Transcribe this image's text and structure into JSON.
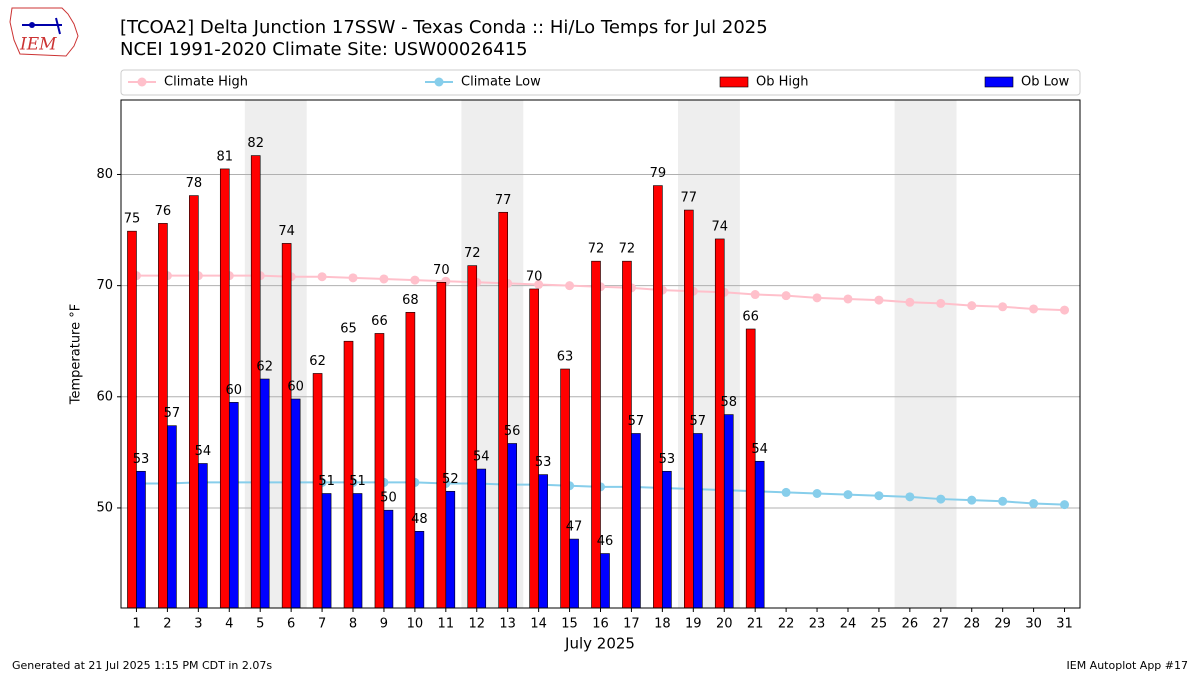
{
  "chart_data": {
    "type": "bar",
    "title": "[TCOA2] Delta Junction 17SSW - Texas Conda :: Hi/Lo Temps for Jul 2025",
    "subtitle": "NCEI 1991-2020 Climate Site: USW00026415",
    "logo_text": "IEM",
    "x_label": "July 2025",
    "y_label": "Temperature °F",
    "footer_left": "Generated at 21 Jul 2025 1:15 PM CDT in 2.07s",
    "footer_right": "IEM Autoplot App #17",
    "categories": [
      "1",
      "2",
      "3",
      "4",
      "5",
      "6",
      "7",
      "8",
      "9",
      "10",
      "11",
      "12",
      "13",
      "14",
      "15",
      "16",
      "17",
      "18",
      "19",
      "20",
      "21",
      "22",
      "23",
      "24",
      "25",
      "26",
      "27",
      "28",
      "29",
      "30",
      "31"
    ],
    "ylim": [
      41,
      86.7
    ],
    "yticks": [
      50,
      60,
      70,
      80
    ],
    "grid": true,
    "series": [
      {
        "name": "Climate High",
        "type": "line",
        "color": "#ffc0cb",
        "values": [
          70.9,
          70.9,
          70.9,
          70.9,
          70.9,
          70.8,
          70.8,
          70.7,
          70.6,
          70.5,
          70.4,
          70.3,
          70.2,
          70.1,
          70.0,
          69.9,
          69.8,
          69.6,
          69.5,
          69.4,
          69.2,
          69.1,
          68.9,
          68.8,
          68.7,
          68.5,
          68.4,
          68.2,
          68.1,
          67.9,
          67.8
        ]
      },
      {
        "name": "Climate Low",
        "type": "line",
        "color": "#87ceeb",
        "values": [
          52.2,
          52.2,
          52.3,
          52.3,
          52.3,
          52.3,
          52.3,
          52.3,
          52.3,
          52.3,
          52.2,
          52.2,
          52.1,
          52.1,
          52.0,
          51.9,
          51.9,
          51.8,
          51.7,
          51.6,
          51.5,
          51.4,
          51.3,
          51.2,
          51.1,
          51.0,
          50.8,
          50.7,
          50.6,
          50.4,
          50.3
        ]
      },
      {
        "name": "Ob High",
        "type": "bar",
        "color": "#ff0000",
        "values": [
          74.9,
          75.6,
          78.1,
          80.5,
          81.7,
          73.8,
          62.1,
          65.0,
          65.7,
          67.6,
          70.3,
          71.8,
          76.6,
          69.7,
          62.5,
          72.2,
          72.2,
          79.0,
          76.8,
          74.2,
          66.1,
          null,
          null,
          null,
          null,
          null,
          null,
          null,
          null,
          null,
          null
        ],
        "value_labels": [
          "75",
          "76",
          "78",
          "81",
          "82",
          "74",
          "62",
          "65",
          "66",
          "68",
          "70",
          "72",
          "77",
          "70",
          "63",
          "72",
          "72",
          "79",
          "77",
          "74",
          "66",
          null,
          null,
          null,
          null,
          null,
          null,
          null,
          null,
          null,
          null
        ]
      },
      {
        "name": "Ob Low",
        "type": "bar",
        "color": "#0000ff",
        "values": [
          53.3,
          57.4,
          54.0,
          59.5,
          61.6,
          59.8,
          51.3,
          51.3,
          49.8,
          47.9,
          51.5,
          53.5,
          55.8,
          53.0,
          47.2,
          45.9,
          56.7,
          53.3,
          56.7,
          58.4,
          54.2,
          null,
          null,
          null,
          null,
          null,
          null,
          null,
          null,
          null,
          null
        ],
        "value_labels": [
          "53",
          "57",
          "54",
          "60",
          "62",
          "60",
          "51",
          "51",
          "50",
          "48",
          "52",
          "54",
          "56",
          "53",
          "47",
          "46",
          "57",
          "53",
          "57",
          "58",
          "54",
          null,
          null,
          null,
          null,
          null,
          null,
          null,
          null,
          null,
          null
        ]
      }
    ]
  }
}
